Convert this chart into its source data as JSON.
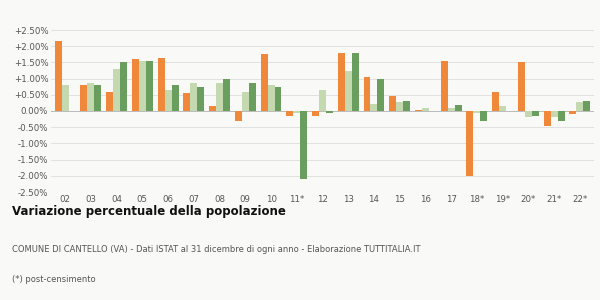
{
  "years": [
    "02",
    "03",
    "04",
    "05",
    "06",
    "07",
    "08",
    "09",
    "10",
    "11*",
    "12",
    "13",
    "14",
    "15",
    "16",
    "17",
    "18*",
    "19*",
    "20*",
    "21*",
    "22*"
  ],
  "cantello": [
    0.0215,
    0.008,
    0.006,
    0.016,
    0.0165,
    0.0055,
    0.0015,
    -0.003,
    0.0175,
    -0.0015,
    -0.0015,
    0.018,
    0.0105,
    0.0045,
    0.0002,
    0.0155,
    -0.02,
    0.006,
    0.015,
    -0.0045,
    -0.001
  ],
  "provincia_va": [
    0.008,
    0.0085,
    0.013,
    0.0155,
    0.0065,
    0.0085,
    0.0085,
    0.006,
    0.008,
    -0.0005,
    0.0065,
    0.0125,
    0.0022,
    0.0028,
    0.001,
    0.001,
    -0.0005,
    0.0015,
    -0.002,
    -0.002,
    0.0028
  ],
  "lombardia": [
    0.0,
    0.008,
    0.015,
    0.0155,
    0.008,
    0.0075,
    0.01,
    0.0085,
    0.0075,
    -0.021,
    -0.0005,
    0.018,
    0.01,
    0.003,
    0.0,
    0.002,
    -0.003,
    0.0,
    -0.0015,
    -0.003,
    0.003
  ],
  "color_cantello": "#f0883c",
  "color_provincia": "#c5d9b0",
  "color_lombardia": "#6a9e5e",
  "ylim_min": -0.025,
  "ylim_max": 0.025,
  "yticks": [
    -0.025,
    -0.02,
    -0.015,
    -0.01,
    -0.005,
    0.0,
    0.005,
    0.01,
    0.015,
    0.02,
    0.025
  ],
  "ytick_labels": [
    "-2.50%",
    "-2.00%",
    "-1.50%",
    "-1.00%",
    "-0.50%",
    "0.00%",
    "+0.50%",
    "+1.00%",
    "+1.50%",
    "+2.00%",
    "+2.50%"
  ],
  "title": "Variazione percentuale della popolazione",
  "subtitle": "COMUNE DI CANTELLO (VA) - Dati ISTAT al 31 dicembre di ogni anno - Elaborazione TUTTITALIA.IT",
  "footnote": "(*) post-censimento",
  "bg_color": "#f9f9f7",
  "grid_color": "#dddddd",
  "bar_width": 0.27
}
